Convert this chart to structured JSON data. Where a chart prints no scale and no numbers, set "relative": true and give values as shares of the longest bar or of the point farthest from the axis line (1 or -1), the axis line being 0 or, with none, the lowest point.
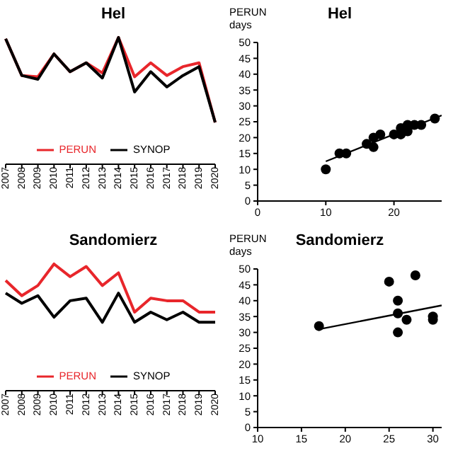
{
  "chart_data": [
    {
      "type": "line",
      "title": "Hel",
      "categories": [
        "2007",
        "2008",
        "2009",
        "2010",
        "2011",
        "2012",
        "2013",
        "2014",
        "2015",
        "2016",
        "2017",
        "2018",
        "2019",
        "2020"
      ],
      "relative": true,
      "legend": "bottom",
      "grid": false,
      "marker": "none",
      "line_style": "solid",
      "series": [
        {
          "name": "PERUN",
          "color": "#e8262b",
          "values": [
            0.99,
            0.7,
            0.69,
            0.87,
            0.73,
            0.8,
            0.72,
            1,
            0.69,
            0.8,
            0.7,
            0.77,
            0.8,
            0.33
          ]
        },
        {
          "name": "SYNOP",
          "color": "#000000",
          "values": [
            0.99,
            0.7,
            0.67,
            0.87,
            0.73,
            0.8,
            0.68,
            1,
            0.57,
            0.73,
            0.61,
            0.7,
            0.77,
            0.33
          ]
        }
      ]
    },
    {
      "type": "scatter",
      "title": "Hel",
      "ylabel": "PERUN days",
      "xlim": [
        0,
        27
      ],
      "xticks": [
        0,
        10,
        20
      ],
      "ylim": [
        0,
        50
      ],
      "yticks": [
        0,
        5,
        10,
        15,
        20,
        25,
        30,
        35,
        40,
        45,
        50
      ],
      "grid": false,
      "marker": "circle",
      "series": [
        {
          "color": "#000000",
          "x": [
            10,
            12,
            13,
            16,
            17,
            17,
            18,
            20,
            21,
            21,
            22,
            22,
            23,
            24,
            26
          ],
          "values": [
            10,
            15,
            15,
            18,
            20,
            17,
            21,
            21,
            23,
            21,
            24,
            22,
            24,
            24,
            26
          ]
        },
        {
          "type": "line",
          "marker": "none",
          "color": "#000000",
          "x": [
            10,
            27
          ],
          "values": [
            12.5,
            27
          ]
        }
      ]
    },
    {
      "type": "line",
      "title": "Sandomierz",
      "categories": [
        "2007",
        "2008",
        "2009",
        "2010",
        "2011",
        "2012",
        "2013",
        "2014",
        "2015",
        "2016",
        "2017",
        "2018",
        "2019",
        "2020"
      ],
      "relative": true,
      "legend": "bottom",
      "grid": false,
      "marker": "none",
      "line_style": "solid",
      "series": [
        {
          "name": "PERUN",
          "color": "#e8262b",
          "values": [
            0.87,
            0.75,
            0.83,
            1,
            0.9,
            0.98,
            0.83,
            0.93,
            0.62,
            0.73,
            0.71,
            0.71,
            0.62,
            0.62
          ]
        },
        {
          "name": "SYNOP",
          "color": "#000000",
          "values": [
            0.77,
            0.69,
            0.75,
            0.58,
            0.71,
            0.73,
            0.54,
            0.77,
            0.54,
            0.62,
            0.56,
            0.62,
            0.54,
            0.54
          ]
        }
      ]
    },
    {
      "type": "scatter",
      "title": "Sandomierz",
      "ylabel": "PERUN days",
      "xlim": [
        10,
        31
      ],
      "xticks": [
        10,
        15,
        20,
        25,
        30
      ],
      "ylim": [
        0,
        50
      ],
      "yticks": [
        0,
        5,
        10,
        15,
        20,
        25,
        30,
        35,
        40,
        45,
        50
      ],
      "grid": false,
      "marker": "circle",
      "series": [
        {
          "color": "#000000",
          "x": [
            17,
            25,
            26,
            26,
            26,
            27,
            28,
            30,
            30
          ],
          "values": [
            32,
            46,
            40,
            36,
            30,
            34,
            48,
            35,
            34
          ]
        },
        {
          "type": "line",
          "marker": "none",
          "color": "#000000",
          "x": [
            17,
            31
          ],
          "values": [
            31,
            38.5
          ]
        }
      ]
    }
  ]
}
